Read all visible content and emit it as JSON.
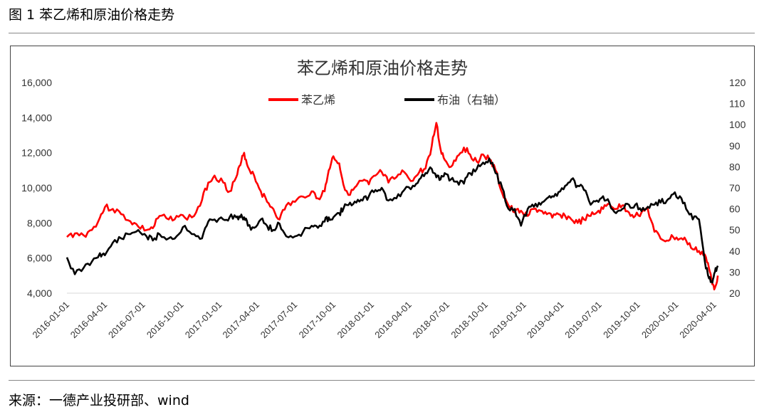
{
  "figure": {
    "label": "图 1 苯乙烯和原油价格走势",
    "source": "来源：一德产业投研部、wind"
  },
  "colors": {
    "styrene": "#ff0000",
    "brent": "#000000"
  },
  "chart_data": {
    "type": "line",
    "title": "苯乙烯和原油价格走势",
    "legend_position": "top-center",
    "grid": false,
    "y_left": {
      "min": 4000,
      "max": 16000,
      "ticks": [
        "4,000",
        "6,000",
        "8,000",
        "10,000",
        "12,000",
        "14,000",
        "16,000"
      ]
    },
    "y_right": {
      "min": 20,
      "max": 120,
      "ticks": [
        "20",
        "30",
        "40",
        "50",
        "60",
        "70",
        "80",
        "90",
        "100",
        "110",
        "120"
      ]
    },
    "x_ticks": [
      "2016-01-01",
      "2016-04-01",
      "2016-07-01",
      "2016-10-01",
      "2017-01-01",
      "2017-04-01",
      "2017-07-01",
      "2017-10-01",
      "2018-01-01",
      "2018-04-01",
      "2018-07-01",
      "2018-10-01",
      "2019-01-01",
      "2019-04-01",
      "2019-07-01",
      "2019-10-01",
      "2020-01-01",
      "2020-04-01"
    ],
    "x_range": [
      "2016-01-01",
      "2020-04-15"
    ],
    "series": [
      {
        "name": "苯乙烯",
        "axis": "left",
        "points": [
          [
            "2016-01-01",
            7200
          ],
          [
            "2016-01-20",
            7400
          ],
          [
            "2016-02-10",
            7300
          ],
          [
            "2016-03-01",
            7600
          ],
          [
            "2016-03-20",
            8300
          ],
          [
            "2016-04-01",
            8900
          ],
          [
            "2016-04-20",
            8800
          ],
          [
            "2016-05-10",
            8500
          ],
          [
            "2016-06-01",
            8100
          ],
          [
            "2016-06-20",
            7800
          ],
          [
            "2016-07-10",
            7600
          ],
          [
            "2016-07-25",
            7700
          ],
          [
            "2016-08-10",
            8400
          ],
          [
            "2016-09-01",
            8200
          ],
          [
            "2016-09-20",
            8400
          ],
          [
            "2016-10-10",
            8300
          ],
          [
            "2016-11-01",
            8400
          ],
          [
            "2016-11-20",
            9300
          ],
          [
            "2016-12-05",
            10300
          ],
          [
            "2016-12-20",
            10700
          ],
          [
            "2017-01-10",
            10300
          ],
          [
            "2017-01-25",
            9800
          ],
          [
            "2017-02-10",
            10600
          ],
          [
            "2017-02-20",
            11300
          ],
          [
            "2017-03-01",
            12000
          ],
          [
            "2017-03-10",
            11200
          ],
          [
            "2017-03-25",
            10700
          ],
          [
            "2017-04-10",
            9800
          ],
          [
            "2017-04-25",
            9200
          ],
          [
            "2017-05-10",
            8800
          ],
          [
            "2017-05-25",
            8200
          ],
          [
            "2017-06-10",
            9000
          ],
          [
            "2017-07-01",
            9200
          ],
          [
            "2017-07-20",
            9500
          ],
          [
            "2017-08-10",
            9800
          ],
          [
            "2017-08-25",
            9400
          ],
          [
            "2017-09-10",
            9800
          ],
          [
            "2017-09-20",
            11000
          ],
          [
            "2017-10-01",
            11800
          ],
          [
            "2017-10-15",
            11400
          ],
          [
            "2017-10-25",
            10200
          ],
          [
            "2017-11-10",
            9600
          ],
          [
            "2017-11-25",
            10100
          ],
          [
            "2017-12-10",
            10400
          ],
          [
            "2017-12-25",
            10200
          ],
          [
            "2018-01-10",
            10700
          ],
          [
            "2018-01-25",
            10900
          ],
          [
            "2018-02-10",
            10300
          ],
          [
            "2018-03-01",
            10600
          ],
          [
            "2018-03-20",
            10900
          ],
          [
            "2018-04-10",
            10400
          ],
          [
            "2018-04-25",
            10900
          ],
          [
            "2018-05-10",
            11100
          ],
          [
            "2018-05-25",
            12400
          ],
          [
            "2018-06-05",
            13700
          ],
          [
            "2018-06-15",
            12200
          ],
          [
            "2018-06-25",
            11600
          ],
          [
            "2018-07-10",
            11200
          ],
          [
            "2018-07-25",
            11800
          ],
          [
            "2018-08-10",
            12300
          ],
          [
            "2018-08-25",
            11900
          ],
          [
            "2018-09-10",
            11500
          ],
          [
            "2018-09-25",
            11900
          ],
          [
            "2018-10-10",
            11600
          ],
          [
            "2018-10-25",
            11000
          ],
          [
            "2018-11-10",
            9700
          ],
          [
            "2018-11-25",
            9000
          ],
          [
            "2018-12-10",
            8600
          ],
          [
            "2018-12-25",
            8700
          ],
          [
            "2019-01-10",
            8400
          ],
          [
            "2019-01-25",
            8800
          ],
          [
            "2019-02-10",
            8700
          ],
          [
            "2019-02-25",
            8500
          ],
          [
            "2019-03-10",
            8300
          ],
          [
            "2019-03-25",
            8500
          ],
          [
            "2019-04-10",
            8400
          ],
          [
            "2019-04-25",
            8200
          ],
          [
            "2019-05-10",
            8000
          ],
          [
            "2019-05-25",
            8200
          ],
          [
            "2019-06-10",
            8400
          ],
          [
            "2019-06-25",
            8600
          ],
          [
            "2019-07-10",
            8800
          ],
          [
            "2019-07-25",
            9100
          ],
          [
            "2019-08-10",
            8800
          ],
          [
            "2019-08-25",
            9000
          ],
          [
            "2019-09-10",
            8600
          ],
          [
            "2019-09-25",
            8400
          ],
          [
            "2019-10-10",
            8600
          ],
          [
            "2019-10-25",
            8800
          ],
          [
            "2019-11-10",
            7500
          ],
          [
            "2019-11-25",
            7100
          ],
          [
            "2019-12-10",
            7000
          ],
          [
            "2019-12-25",
            7200
          ],
          [
            "2020-01-10",
            7100
          ],
          [
            "2020-01-25",
            7000
          ],
          [
            "2020-02-10",
            6500
          ],
          [
            "2020-02-25",
            6400
          ],
          [
            "2020-03-10",
            6200
          ],
          [
            "2020-03-20",
            5400
          ],
          [
            "2020-03-28",
            4500
          ],
          [
            "2020-04-03",
            4300
          ],
          [
            "2020-04-10",
            5000
          ]
        ]
      },
      {
        "name": "布油（右轴）",
        "axis": "right",
        "points": [
          [
            "2016-01-01",
            37
          ],
          [
            "2016-01-20",
            29
          ],
          [
            "2016-02-10",
            32
          ],
          [
            "2016-03-01",
            35
          ],
          [
            "2016-03-20",
            39
          ],
          [
            "2016-04-01",
            38
          ],
          [
            "2016-04-20",
            44
          ],
          [
            "2016-05-10",
            46
          ],
          [
            "2016-06-01",
            48
          ],
          [
            "2016-06-20",
            50
          ],
          [
            "2016-07-10",
            47
          ],
          [
            "2016-07-25",
            45
          ],
          [
            "2016-08-10",
            48
          ],
          [
            "2016-09-01",
            46
          ],
          [
            "2016-09-20",
            47
          ],
          [
            "2016-10-10",
            52
          ],
          [
            "2016-11-01",
            48
          ],
          [
            "2016-11-20",
            46
          ],
          [
            "2016-12-05",
            54
          ],
          [
            "2016-12-20",
            55
          ],
          [
            "2017-01-10",
            55
          ],
          [
            "2017-01-25",
            56
          ],
          [
            "2017-02-10",
            56
          ],
          [
            "2017-02-20",
            56
          ],
          [
            "2017-03-01",
            56
          ],
          [
            "2017-03-10",
            52
          ],
          [
            "2017-03-25",
            51
          ],
          [
            "2017-04-10",
            55
          ],
          [
            "2017-04-25",
            52
          ],
          [
            "2017-05-10",
            50
          ],
          [
            "2017-05-25",
            53
          ],
          [
            "2017-06-10",
            47
          ],
          [
            "2017-07-01",
            47
          ],
          [
            "2017-07-20",
            49
          ],
          [
            "2017-08-10",
            52
          ],
          [
            "2017-08-25",
            51
          ],
          [
            "2017-09-10",
            54
          ],
          [
            "2017-09-20",
            56
          ],
          [
            "2017-10-01",
            56
          ],
          [
            "2017-10-15",
            58
          ],
          [
            "2017-10-25",
            60
          ],
          [
            "2017-11-10",
            63
          ],
          [
            "2017-11-25",
            63
          ],
          [
            "2017-12-10",
            64
          ],
          [
            "2017-12-25",
            66
          ],
          [
            "2018-01-10",
            69
          ],
          [
            "2018-01-25",
            70
          ],
          [
            "2018-02-10",
            64
          ],
          [
            "2018-03-01",
            65
          ],
          [
            "2018-03-20",
            69
          ],
          [
            "2018-04-10",
            71
          ],
          [
            "2018-04-25",
            74
          ],
          [
            "2018-05-10",
            77
          ],
          [
            "2018-05-25",
            79
          ],
          [
            "2018-06-05",
            75
          ],
          [
            "2018-06-15",
            74
          ],
          [
            "2018-06-25",
            77
          ],
          [
            "2018-07-10",
            74
          ],
          [
            "2018-07-25",
            73
          ],
          [
            "2018-08-10",
            72
          ],
          [
            "2018-08-25",
            77
          ],
          [
            "2018-09-10",
            79
          ],
          [
            "2018-09-25",
            82
          ],
          [
            "2018-10-10",
            84
          ],
          [
            "2018-10-25",
            77
          ],
          [
            "2018-11-10",
            70
          ],
          [
            "2018-11-25",
            60
          ],
          [
            "2018-12-10",
            60
          ],
          [
            "2018-12-25",
            52
          ],
          [
            "2019-01-10",
            60
          ],
          [
            "2019-01-25",
            61
          ],
          [
            "2019-02-10",
            62
          ],
          [
            "2019-02-25",
            65
          ],
          [
            "2019-03-10",
            66
          ],
          [
            "2019-03-25",
            68
          ],
          [
            "2019-04-10",
            71
          ],
          [
            "2019-04-25",
            74
          ],
          [
            "2019-05-10",
            71
          ],
          [
            "2019-05-25",
            69
          ],
          [
            "2019-06-10",
            62
          ],
          [
            "2019-06-25",
            64
          ],
          [
            "2019-07-10",
            66
          ],
          [
            "2019-07-25",
            63
          ],
          [
            "2019-08-10",
            58
          ],
          [
            "2019-08-25",
            60
          ],
          [
            "2019-09-10",
            62
          ],
          [
            "2019-09-25",
            62
          ],
          [
            "2019-10-10",
            59
          ],
          [
            "2019-10-25",
            61
          ],
          [
            "2019-11-10",
            62
          ],
          [
            "2019-11-25",
            63
          ],
          [
            "2019-12-10",
            64
          ],
          [
            "2019-12-25",
            67
          ],
          [
            "2020-01-10",
            66
          ],
          [
            "2020-01-25",
            60
          ],
          [
            "2020-02-10",
            55
          ],
          [
            "2020-02-25",
            55
          ],
          [
            "2020-03-10",
            35
          ],
          [
            "2020-03-20",
            27
          ],
          [
            "2020-03-28",
            25
          ],
          [
            "2020-04-03",
            30
          ],
          [
            "2020-04-10",
            33
          ]
        ]
      }
    ]
  }
}
